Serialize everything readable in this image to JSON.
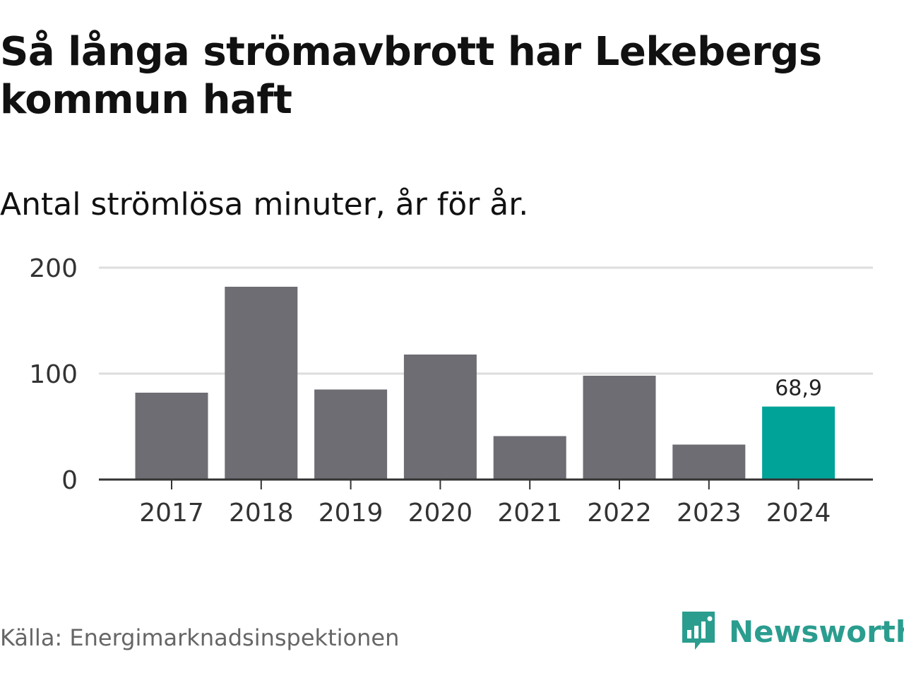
{
  "title": "Så långa strömavbrott har Lekebergs kommun haft",
  "subtitle": "Antal strömlösa minuter, år för år.",
  "source": "Källa: Energimarknadsinspektionen",
  "brand": {
    "name": "Newsworthy",
    "color": "#2a9d8f",
    "icon": "newsworthy-logo-icon"
  },
  "colors": {
    "bar": "#6e6d74",
    "highlight": "#00a398",
    "grid": "#dddddd",
    "axis": "#333333"
  },
  "chart_data": {
    "type": "bar",
    "title": "Så långa strömavbrott har Lekebergs kommun haft",
    "subtitle": "Antal strömlösa minuter, år för år.",
    "categories": [
      "2017",
      "2018",
      "2019",
      "2020",
      "2021",
      "2022",
      "2023",
      "2024"
    ],
    "values": [
      82,
      182,
      85,
      118,
      41,
      98,
      33,
      68.9
    ],
    "highlight_index": 7,
    "data_labels": {
      "2024": "68,9"
    },
    "ylim": [
      0,
      200
    ],
    "yticks": [
      0,
      100,
      200
    ],
    "xlabel": "",
    "ylabel": "",
    "grid": true
  }
}
